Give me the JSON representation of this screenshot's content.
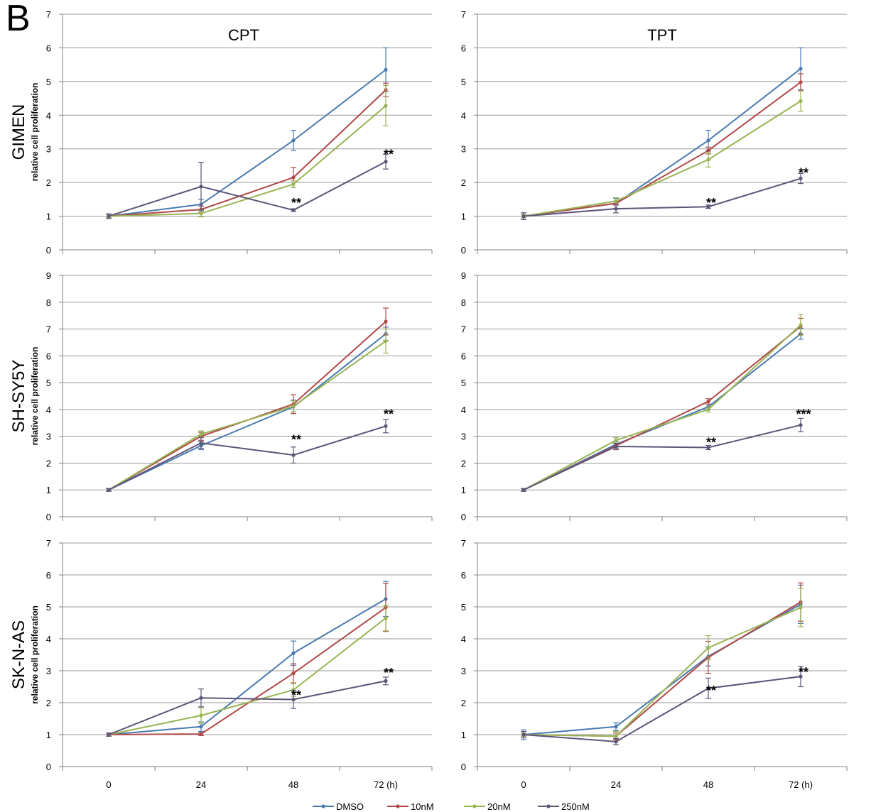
{
  "figure": {
    "panel_letter": "B",
    "column_titles": [
      "CPT",
      "TPT"
    ],
    "row_labels": [
      "GIMEN",
      "SH-SY5Y",
      "SK-N-AS"
    ],
    "ylabel": "relative cell proliferation",
    "x_ticks": [
      "0",
      "24",
      "48",
      "72 (h)"
    ],
    "legend": [
      "DMSO",
      "10nM",
      "20nM",
      "250nM"
    ]
  },
  "colors": {
    "DMSO": "#4a7ab0",
    "10nM": "#b04848",
    "20nM": "#98b454",
    "250nM": "#5e5478",
    "grid": "#9a9a9a",
    "axis": "#808080",
    "text": "#000000"
  },
  "chart_data": [
    {
      "type": "line",
      "row": "GIMEN",
      "column": "CPT",
      "title": "CPT",
      "ylabel": "relative cell proliferation",
      "ylim": [
        0,
        7
      ],
      "grid": true,
      "categories": [
        "0",
        "24",
        "48",
        "72 (h)"
      ],
      "series": [
        {
          "name": "DMSO",
          "values": [
            1,
            1.35,
            3.25,
            5.35
          ],
          "errors": [
            0.05,
            0.15,
            0.3,
            0.65
          ]
        },
        {
          "name": "10nM",
          "values": [
            1,
            1.2,
            2.15,
            4.75
          ],
          "errors": [
            0.05,
            0.1,
            0.3,
            0.2
          ]
        },
        {
          "name": "20nM",
          "values": [
            1,
            1.08,
            1.95,
            4.28
          ],
          "errors": [
            0.05,
            0.1,
            0.1,
            0.6
          ]
        },
        {
          "name": "250nM",
          "values": [
            1,
            1.88,
            1.18,
            2.62
          ],
          "errors": [
            0.07,
            0.72,
            0.04,
            0.22
          ]
        }
      ],
      "annotations": [
        {
          "x": "48",
          "text": "**",
          "y": 1.45
        },
        {
          "x": "72 (h)",
          "text": "**",
          "y": 2.9
        }
      ]
    },
    {
      "type": "line",
      "row": "GIMEN",
      "column": "TPT",
      "title": "TPT",
      "ylabel": "",
      "ylim": [
        0,
        7
      ],
      "grid": true,
      "categories": [
        "0",
        "24",
        "48",
        "72 (h)"
      ],
      "series": [
        {
          "name": "DMSO",
          "values": [
            1,
            1.38,
            3.25,
            5.38
          ],
          "errors": [
            0.1,
            0.15,
            0.3,
            0.62
          ]
        },
        {
          "name": "10nM",
          "values": [
            1,
            1.38,
            2.95,
            4.98
          ],
          "errors": [
            0.05,
            0.05,
            0.1,
            0.25
          ]
        },
        {
          "name": "20nM",
          "values": [
            1,
            1.45,
            2.68,
            4.42
          ],
          "errors": [
            0.05,
            0.1,
            0.22,
            0.3
          ]
        },
        {
          "name": "250nM",
          "values": [
            1,
            1.22,
            1.28,
            2.12
          ],
          "errors": [
            0.1,
            0.12,
            0.05,
            0.15
          ]
        }
      ],
      "annotations": [
        {
          "x": "48",
          "text": "**",
          "y": 1.45
        },
        {
          "x": "72 (h)",
          "text": "**",
          "y": 2.35
        }
      ]
    },
    {
      "type": "line",
      "row": "SH-SY5Y",
      "column": "CPT",
      "ylabel": "relative cell proliferation",
      "ylim": [
        0,
        9
      ],
      "grid": true,
      "categories": [
        "0",
        "24",
        "48",
        "72 (h)"
      ],
      "series": [
        {
          "name": "DMSO",
          "values": [
            1,
            2.65,
            4.1,
            6.82
          ],
          "errors": [
            0.05,
            0.15,
            0.25,
            0.25
          ]
        },
        {
          "name": "10nM",
          "values": [
            1,
            3.0,
            4.2,
            7.28
          ],
          "errors": [
            0.05,
            0.15,
            0.35,
            0.5
          ]
        },
        {
          "name": "20nM",
          "values": [
            1,
            3.08,
            4.12,
            6.55
          ],
          "errors": [
            0.05,
            0.12,
            0.2,
            0.45
          ]
        },
        {
          "name": "250nM",
          "values": [
            1,
            2.75,
            2.3,
            3.38
          ],
          "errors": [
            0.05,
            0.2,
            0.3,
            0.25
          ]
        }
      ],
      "annotations": [
        {
          "x": "48",
          "text": "**",
          "y": 2.95
        },
        {
          "x": "72 (h)",
          "text": "**",
          "y": 3.9
        }
      ]
    },
    {
      "type": "line",
      "row": "SH-SY5Y",
      "column": "TPT",
      "ylabel": "",
      "ylim": [
        0,
        9
      ],
      "grid": true,
      "categories": [
        "0",
        "24",
        "48",
        "72 (h)"
      ],
      "series": [
        {
          "name": "DMSO",
          "values": [
            1,
            2.7,
            4.1,
            6.82
          ],
          "errors": [
            0.05,
            0.1,
            0.1,
            0.2
          ]
        },
        {
          "name": "10nM",
          "values": [
            1,
            2.65,
            4.3,
            7.1
          ],
          "errors": [
            0.05,
            0.1,
            0.1,
            0.3
          ]
        },
        {
          "name": "20nM",
          "values": [
            1,
            2.85,
            4.0,
            7.15
          ],
          "errors": [
            0.05,
            0.1,
            0.1,
            0.4
          ]
        },
        {
          "name": "250nM",
          "values": [
            1,
            2.62,
            2.58,
            3.42
          ],
          "errors": [
            0.05,
            0.12,
            0.08,
            0.25
          ]
        }
      ],
      "annotations": [
        {
          "x": "48",
          "text": "**",
          "y": 2.85
        },
        {
          "x": "72 (h)",
          "text": "***",
          "y": 3.9
        }
      ]
    },
    {
      "type": "line",
      "row": "SK-N-AS",
      "column": "CPT",
      "ylabel": "relative cell proliferation",
      "ylim": [
        0,
        7
      ],
      "grid": true,
      "categories": [
        "0",
        "24",
        "48",
        "72 (h)"
      ],
      "series": [
        {
          "name": "DMSO",
          "values": [
            1,
            1.25,
            3.55,
            5.25
          ],
          "errors": [
            0.05,
            0.15,
            0.38,
            0.55
          ]
        },
        {
          "name": "10nM",
          "values": [
            1,
            1.02,
            2.92,
            4.98
          ],
          "errors": [
            0.05,
            0.05,
            0.3,
            0.75
          ]
        },
        {
          "name": "20nM",
          "values": [
            1,
            1.6,
            2.4,
            4.65
          ],
          "errors": [
            0.05,
            0.25,
            0.2,
            0.4
          ]
        },
        {
          "name": "250nM",
          "values": [
            1,
            2.15,
            2.1,
            2.68
          ],
          "errors": [
            0.05,
            0.28,
            0.28,
            0.12
          ]
        }
      ],
      "annotations": [
        {
          "x": "48",
          "text": "**",
          "y": 2.3
        },
        {
          "x": "72 (h)",
          "text": "**",
          "y": 3.0
        }
      ]
    },
    {
      "type": "line",
      "row": "SK-N-AS",
      "column": "TPT",
      "ylabel": "",
      "ylim": [
        0,
        7
      ],
      "grid": true,
      "categories": [
        "0",
        "24",
        "48",
        "72 (h)"
      ],
      "series": [
        {
          "name": "DMSO",
          "values": [
            1,
            1.25,
            3.45,
            5.08
          ],
          "errors": [
            0.15,
            0.12,
            0.3,
            0.6
          ]
        },
        {
          "name": "10nM",
          "values": [
            1,
            0.95,
            3.42,
            5.15
          ],
          "errors": [
            0.05,
            0.1,
            0.5,
            0.6
          ]
        },
        {
          "name": "20nM",
          "values": [
            1,
            0.95,
            3.72,
            4.98
          ],
          "errors": [
            0.05,
            0.15,
            0.38,
            0.6
          ]
        },
        {
          "name": "250nM",
          "values": [
            1,
            0.78,
            2.45,
            2.82
          ],
          "errors": [
            0.1,
            0.1,
            0.32,
            0.32
          ]
        }
      ],
      "annotations": [
        {
          "x": "48",
          "text": "**",
          "y": 2.45
        },
        {
          "x": "72 (h)",
          "text": "**",
          "y": 3.02
        }
      ]
    }
  ]
}
